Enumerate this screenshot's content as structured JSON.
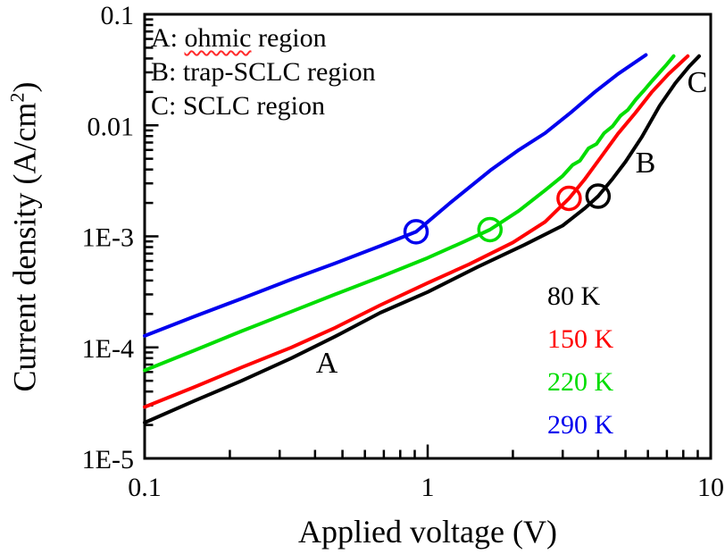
{
  "figure": {
    "background": "#ffffff",
    "frame_color": "#000000"
  },
  "annotations": {
    "line_a_prefix": "A: ",
    "line_a_word": "ohmic",
    "line_a_suffix": " region",
    "line_b": "B: trap-SCLC region",
    "line_c": "C: SCLC region",
    "misspell_underline_color": "#ff2a2a"
  },
  "legend": {
    "items": [
      {
        "label": "80 K",
        "color": "#000000"
      },
      {
        "label": "150 K",
        "color": "#ff0000"
      },
      {
        "label": "220 K",
        "color": "#00dd00"
      },
      {
        "label": "290 K",
        "color": "#0000ee"
      }
    ]
  },
  "chart_data": {
    "type": "line",
    "title": "",
    "xlabel": "Applied voltage (V)",
    "ylabel_prefix": "Current density (A/cm",
    "ylabel_sup": "2",
    "ylabel_suffix": ")",
    "xscale": "log",
    "yscale": "log",
    "xlim": [
      0.1,
      10
    ],
    "ylim": [
      1e-05,
      0.1
    ],
    "grid": false,
    "legend_position": "lower right inside",
    "x_ticks": [
      {
        "value": 0.1,
        "label": "0.1"
      },
      {
        "value": 1,
        "label": "1"
      },
      {
        "value": 10,
        "label": "10"
      }
    ],
    "y_ticks": [
      {
        "value": 0.1,
        "label": "0.1"
      },
      {
        "value": 0.01,
        "label": "0.01"
      },
      {
        "value": 0.001,
        "label": "1E-3"
      },
      {
        "value": 0.0001,
        "label": "1E-4"
      },
      {
        "value": 1e-05,
        "label": "1E-5"
      }
    ],
    "region_labels": [
      {
        "text": "A",
        "meaning": "ohmic region"
      },
      {
        "text": "B",
        "meaning": "trap-SCLC region"
      },
      {
        "text": "C",
        "meaning": "SCLC region"
      }
    ],
    "series": [
      {
        "name": "80 K",
        "color": "#000000",
        "transition_marker": {
          "v": 4.0,
          "j": 0.0023
        },
        "points": [
          [
            0.1,
            2.1e-05
          ],
          [
            0.15,
            3.3e-05
          ],
          [
            0.22,
            5e-05
          ],
          [
            0.33,
            8e-05
          ],
          [
            0.47,
            0.000125
          ],
          [
            0.68,
            0.000205
          ],
          [
            1.0,
            0.000315
          ],
          [
            1.5,
            0.00053
          ],
          [
            2.2,
            0.00084
          ],
          [
            3.0,
            0.00125
          ],
          [
            3.6,
            0.0018
          ],
          [
            4.0,
            0.0023
          ],
          [
            4.5,
            0.0033
          ],
          [
            5.0,
            0.0047
          ],
          [
            5.7,
            0.0078
          ],
          [
            6.6,
            0.015
          ],
          [
            7.5,
            0.024
          ],
          [
            8.4,
            0.034
          ],
          [
            9.1,
            0.042
          ]
        ]
      },
      {
        "name": "150 K",
        "color": "#ff0000",
        "transition_marker": {
          "v": 3.16,
          "j": 0.0022
        },
        "points": [
          [
            0.1,
            2.9e-05
          ],
          [
            0.15,
            4.4e-05
          ],
          [
            0.22,
            6.6e-05
          ],
          [
            0.33,
            0.0001
          ],
          [
            0.47,
            0.00015
          ],
          [
            0.68,
            0.00024
          ],
          [
            1.0,
            0.00038
          ],
          [
            1.4,
            0.00056
          ],
          [
            2.0,
            0.00088
          ],
          [
            2.6,
            0.00135
          ],
          [
            3.16,
            0.0022
          ],
          [
            3.6,
            0.0033
          ],
          [
            4.1,
            0.0052
          ],
          [
            4.7,
            0.0084
          ],
          [
            5.4,
            0.0128
          ],
          [
            6.2,
            0.02
          ],
          [
            7.1,
            0.029
          ],
          [
            8.3,
            0.042
          ]
        ]
      },
      {
        "name": "220 K",
        "color": "#00dd00",
        "transition_marker": {
          "v": 1.66,
          "j": 0.00115
        },
        "points": [
          [
            0.1,
            6.2e-05
          ],
          [
            0.15,
            9.4e-05
          ],
          [
            0.22,
            0.00014
          ],
          [
            0.33,
            0.00021
          ],
          [
            0.47,
            0.0003
          ],
          [
            0.68,
            0.00043
          ],
          [
            1.0,
            0.00064
          ],
          [
            1.35,
            0.0009
          ],
          [
            1.66,
            0.00115
          ],
          [
            2.1,
            0.0017
          ],
          [
            2.6,
            0.0026
          ],
          [
            3.0,
            0.0035
          ],
          [
            3.25,
            0.0044
          ],
          [
            3.45,
            0.0048
          ],
          [
            3.7,
            0.0062
          ],
          [
            3.95,
            0.0068
          ],
          [
            4.2,
            0.0085
          ],
          [
            4.5,
            0.0098
          ],
          [
            4.8,
            0.0122
          ],
          [
            5.1,
            0.0138
          ],
          [
            5.45,
            0.0172
          ],
          [
            5.8,
            0.0205
          ],
          [
            6.15,
            0.0245
          ],
          [
            6.6,
            0.03
          ],
          [
            7.0,
            0.0355
          ],
          [
            7.4,
            0.042
          ]
        ]
      },
      {
        "name": "290 K",
        "color": "#0000ee",
        "transition_marker": {
          "v": 0.91,
          "j": 0.0011
        },
        "points": [
          [
            0.1,
            0.000127
          ],
          [
            0.15,
            0.00019
          ],
          [
            0.22,
            0.000275
          ],
          [
            0.33,
            0.00041
          ],
          [
            0.47,
            0.00057
          ],
          [
            0.68,
            0.00082
          ],
          [
            0.91,
            0.0011
          ],
          [
            1.2,
            0.002
          ],
          [
            1.68,
            0.004
          ],
          [
            2.1,
            0.006
          ],
          [
            2.6,
            0.0085
          ],
          [
            3.2,
            0.013
          ],
          [
            3.9,
            0.02
          ],
          [
            4.7,
            0.029
          ],
          [
            5.9,
            0.043
          ]
        ]
      }
    ]
  }
}
